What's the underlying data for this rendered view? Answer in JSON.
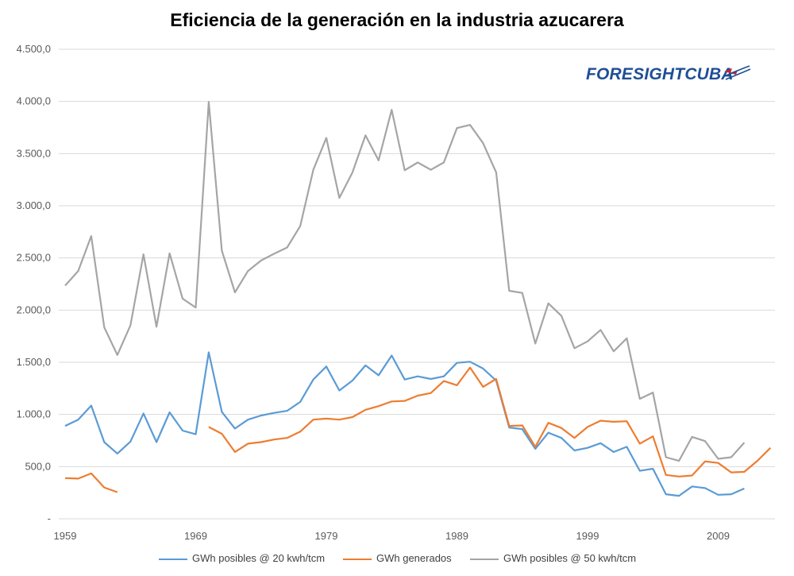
{
  "title": "Eficiencia de la generación en la industria azucarera",
  "logo": {
    "text_a": "FORESIGHT",
    "text_b": "CUBA",
    "icon": "flag-arrow-icon"
  },
  "colors": {
    "blue": "#5b9bd5",
    "orange": "#ed7d31",
    "gray": "#a5a5a5",
    "grid": "#d9d9d9",
    "axis_text": "#595959",
    "logo": "#1f4e96",
    "logo_accent": "#c0262d"
  },
  "chart_data": {
    "type": "line",
    "title": "Eficiencia de la generación en la industria azucarera",
    "xlabel": "",
    "ylabel": "",
    "xlim": [
      1959,
      2013
    ],
    "ylim": [
      0,
      4500
    ],
    "y_ticks": [
      0,
      500,
      1000,
      1500,
      2000,
      2500,
      3000,
      3500,
      4000,
      4500
    ],
    "y_tick_labels": [
      "-",
      "500,0",
      "1.000,0",
      "1.500,0",
      "2.000,0",
      "2.500,0",
      "3.000,0",
      "3.500,0",
      "4.000,0",
      "4.500,0"
    ],
    "x_ticks": [
      1959,
      1969,
      1979,
      1989,
      1999,
      2009
    ],
    "x_tick_labels": [
      "1959",
      "1969",
      "1979",
      "1989",
      "1999",
      "2009"
    ],
    "grid": "horizontal",
    "legend_position": "bottom",
    "series": [
      {
        "name": "GWh posibles @ 20 kwh/tcm",
        "color": "#5b9bd5",
        "points": [
          [
            1959,
            890
          ],
          [
            1960,
            950
          ],
          [
            1961,
            1085
          ],
          [
            1962,
            735
          ],
          [
            1963,
            625
          ],
          [
            1964,
            740
          ],
          [
            1965,
            1010
          ],
          [
            1966,
            735
          ],
          [
            1967,
            1020
          ],
          [
            1968,
            845
          ],
          [
            1969,
            810
          ],
          [
            1970,
            1595
          ],
          [
            1971,
            1025
          ],
          [
            1972,
            865
          ],
          [
            1973,
            950
          ],
          [
            1974,
            990
          ],
          [
            1975,
            1015
          ],
          [
            1976,
            1035
          ],
          [
            1977,
            1120
          ],
          [
            1978,
            1335
          ],
          [
            1979,
            1460
          ],
          [
            1980,
            1230
          ],
          [
            1981,
            1325
          ],
          [
            1982,
            1470
          ],
          [
            1983,
            1375
          ],
          [
            1984,
            1565
          ],
          [
            1985,
            1335
          ],
          [
            1986,
            1365
          ],
          [
            1987,
            1340
          ],
          [
            1988,
            1365
          ],
          [
            1989,
            1495
          ],
          [
            1990,
            1505
          ],
          [
            1991,
            1440
          ],
          [
            1992,
            1325
          ],
          [
            1993,
            875
          ],
          [
            1994,
            860
          ],
          [
            1995,
            670
          ],
          [
            1996,
            825
          ],
          [
            1997,
            775
          ],
          [
            1998,
            655
          ],
          [
            1999,
            680
          ],
          [
            2000,
            725
          ],
          [
            2001,
            640
          ],
          [
            2002,
            690
          ],
          [
            2003,
            460
          ],
          [
            2004,
            480
          ],
          [
            2005,
            235
          ],
          [
            2006,
            220
          ],
          [
            2007,
            310
          ],
          [
            2008,
            295
          ],
          [
            2009,
            230
          ],
          [
            2010,
            235
          ],
          [
            2011,
            290
          ]
        ]
      },
      {
        "name": "GWh generados",
        "color": "#ed7d31",
        "segments": [
          [
            [
              1959,
              390
            ],
            [
              1960,
              385
            ],
            [
              1961,
              435
            ],
            [
              1962,
              300
            ],
            [
              1963,
              255
            ]
          ],
          [
            [
              1970,
              880
            ],
            [
              1971,
              815
            ],
            [
              1972,
              640
            ],
            [
              1973,
              720
            ],
            [
              1974,
              735
            ],
            [
              1975,
              760
            ],
            [
              1976,
              775
            ],
            [
              1977,
              835
            ],
            [
              1978,
              950
            ],
            [
              1979,
              960
            ],
            [
              1980,
              950
            ],
            [
              1981,
              975
            ],
            [
              1982,
              1045
            ],
            [
              1983,
              1080
            ],
            [
              1984,
              1125
            ],
            [
              1985,
              1130
            ],
            [
              1986,
              1180
            ],
            [
              1987,
              1205
            ],
            [
              1988,
              1320
            ],
            [
              1989,
              1280
            ],
            [
              1990,
              1450
            ],
            [
              1991,
              1265
            ],
            [
              1992,
              1340
            ],
            [
              1993,
              890
            ],
            [
              1994,
              895
            ],
            [
              1995,
              690
            ],
            [
              1996,
              920
            ],
            [
              1997,
              870
            ],
            [
              1998,
              775
            ],
            [
              1999,
              880
            ],
            [
              2000,
              940
            ],
            [
              2001,
              930
            ],
            [
              2002,
              935
            ],
            [
              2003,
              720
            ],
            [
              2004,
              790
            ],
            [
              2005,
              420
            ],
            [
              2006,
              405
            ],
            [
              2007,
              415
            ],
            [
              2008,
              550
            ],
            [
              2009,
              535
            ],
            [
              2010,
              445
            ],
            [
              2011,
              450
            ],
            [
              2012,
              555
            ],
            [
              2013,
              680
            ]
          ]
        ]
      },
      {
        "name": "GWh posibles @ 50 kwh/tcm",
        "color": "#a5a5a5",
        "points": [
          [
            1959,
            2235
          ],
          [
            1960,
            2375
          ],
          [
            1961,
            2710
          ],
          [
            1962,
            1835
          ],
          [
            1963,
            1570
          ],
          [
            1964,
            1855
          ],
          [
            1965,
            2535
          ],
          [
            1966,
            1840
          ],
          [
            1967,
            2545
          ],
          [
            1968,
            2110
          ],
          [
            1969,
            2025
          ],
          [
            1970,
            3995
          ],
          [
            1971,
            2570
          ],
          [
            1972,
            2170
          ],
          [
            1973,
            2375
          ],
          [
            1974,
            2475
          ],
          [
            1975,
            2540
          ],
          [
            1976,
            2600
          ],
          [
            1977,
            2805
          ],
          [
            1978,
            3345
          ],
          [
            1979,
            3650
          ],
          [
            1980,
            3075
          ],
          [
            1981,
            3320
          ],
          [
            1982,
            3675
          ],
          [
            1983,
            3435
          ],
          [
            1984,
            3920
          ],
          [
            1985,
            3340
          ],
          [
            1986,
            3415
          ],
          [
            1987,
            3345
          ],
          [
            1988,
            3415
          ],
          [
            1989,
            3745
          ],
          [
            1990,
            3775
          ],
          [
            1991,
            3600
          ],
          [
            1992,
            3320
          ],
          [
            1993,
            2185
          ],
          [
            1994,
            2165
          ],
          [
            1995,
            1680
          ],
          [
            1996,
            2065
          ],
          [
            1997,
            1945
          ],
          [
            1998,
            1635
          ],
          [
            1999,
            1700
          ],
          [
            2000,
            1810
          ],
          [
            2001,
            1605
          ],
          [
            2002,
            1730
          ],
          [
            2003,
            1150
          ],
          [
            2004,
            1210
          ],
          [
            2005,
            590
          ],
          [
            2006,
            555
          ],
          [
            2007,
            785
          ],
          [
            2008,
            745
          ],
          [
            2009,
            575
          ],
          [
            2010,
            590
          ],
          [
            2011,
            730
          ]
        ]
      }
    ]
  }
}
